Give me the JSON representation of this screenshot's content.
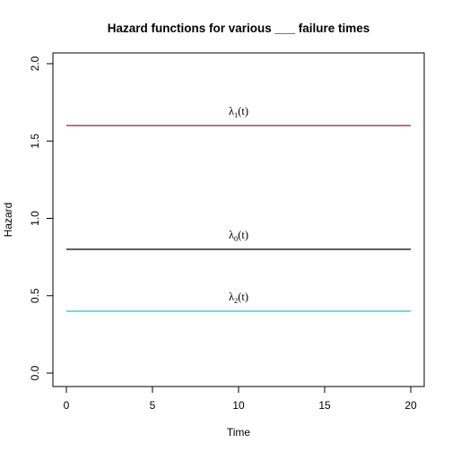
{
  "chart_data": {
    "type": "line",
    "title": "Hazard functions for various ___ failure times",
    "xlabel": "Time",
    "ylabel": "Hazard",
    "xlim": [
      0,
      20
    ],
    "ylim": [
      0,
      2
    ],
    "x_ticks": [
      "0",
      "5",
      "10",
      "15",
      "20"
    ],
    "y_ticks": [
      "0.0",
      "0.5",
      "1.0",
      "1.5",
      "2.0"
    ],
    "grid": false,
    "legend": "none",
    "series": [
      {
        "name": "λ1(t)",
        "label_base": "λ",
        "label_sub": "1",
        "label_tail": "(t)",
        "color": "#7a2b3b",
        "x": [
          0,
          20
        ],
        "y": [
          1.6,
          1.6
        ]
      },
      {
        "name": "λ0(t)",
        "label_base": "λ",
        "label_sub": "0",
        "label_tail": "(t)",
        "color": "#000000",
        "x": [
          0,
          20
        ],
        "y": [
          0.8,
          0.8
        ]
      },
      {
        "name": "λ2(t)",
        "label_base": "λ",
        "label_sub": "2",
        "label_tail": "(t)",
        "color": "#22c4c4",
        "x": [
          0,
          20
        ],
        "y": [
          0.4,
          0.4
        ]
      }
    ]
  }
}
